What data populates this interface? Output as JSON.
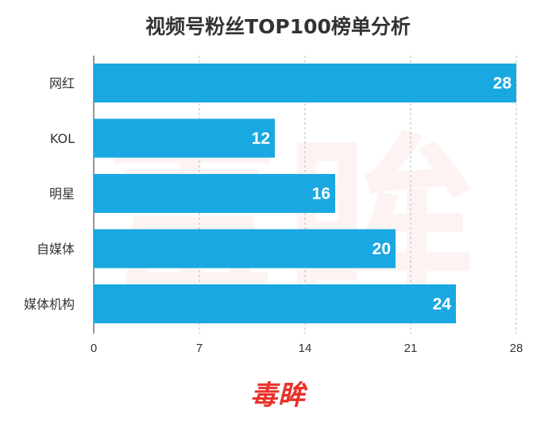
{
  "chart_data": {
    "type": "bar",
    "orientation": "horizontal",
    "title": "视频号粉丝TOP100榜单分析",
    "categories": [
      "网红",
      "KOL",
      "明星",
      "自媒体",
      "媒体机构"
    ],
    "values": [
      28,
      12,
      16,
      20,
      24
    ],
    "xlim": [
      0,
      28
    ],
    "xticks": [
      0,
      7,
      14,
      21,
      28
    ],
    "grid": "vertical-dashed",
    "bar_color": "#19a8e1",
    "value_label_color": "#ffffff"
  },
  "brand": {
    "logo_text": "毒眸",
    "logo_color": "#e8322a",
    "watermark_text": "毒眸"
  }
}
